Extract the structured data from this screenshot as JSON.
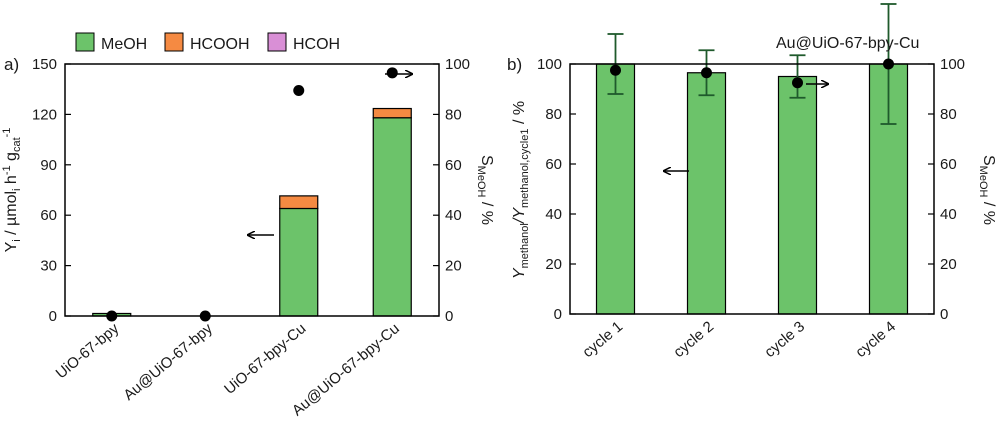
{
  "legend": [
    {
      "name": "MeOH",
      "color": "#6cc36a"
    },
    {
      "name": "HCOOH",
      "color": "#f58a42"
    },
    {
      "name": "HCOH",
      "color": "#d98fd6"
    }
  ],
  "chart_data": [
    {
      "type": "bar",
      "panel_label": "a)",
      "stacked": true,
      "categories": [
        "UiO-67-bpy",
        "Au@UiO-67-bpy",
        "UiO-67-bpy-Cu",
        "Au@UiO-67-bpy-Cu"
      ],
      "series": [
        {
          "name": "MeOH",
          "values": [
            1.5,
            0,
            64,
            118
          ]
        },
        {
          "name": "HCOOH",
          "values": [
            0,
            0,
            7.5,
            5.5
          ]
        },
        {
          "name": "HCOH",
          "values": [
            0,
            0,
            0,
            0
          ]
        }
      ],
      "selectivity": {
        "name": "S_MeOH",
        "values": [
          0,
          0,
          89.5,
          96.5
        ]
      },
      "ylabel_parts": [
        "Y",
        "i",
        " / µmol",
        "i",
        " h",
        "-1",
        " g",
        "cat",
        "-1"
      ],
      "y2label_parts": [
        "S",
        "MeOH",
        " / %"
      ],
      "ylim": [
        0,
        150
      ],
      "yticks": [
        0,
        30,
        60,
        90,
        120,
        150
      ],
      "y2lim": [
        0,
        100
      ],
      "y2ticks": [
        0,
        20,
        40,
        60,
        80,
        100
      ]
    },
    {
      "type": "bar",
      "panel_label": "b)",
      "title": "Au@UiO-67-bpy-Cu",
      "categories": [
        "cycle 1",
        "cycle 2",
        "cycle 3",
        "cycle 4"
      ],
      "series": [
        {
          "name": "Y_methanol/Y_methanol,cycle1",
          "values": [
            100,
            96.5,
            95,
            100
          ],
          "errors": [
            12,
            9,
            8.5,
            24
          ]
        }
      ],
      "selectivity": {
        "name": "S_MeOH",
        "values": [
          97.5,
          96.5,
          92.5,
          100
        ]
      },
      "ylabel_parts": [
        "Y",
        "methanol",
        "/Y",
        "methanol,cycle1",
        " / %"
      ],
      "y2label_parts": [
        "S",
        "MeOH",
        " / %"
      ],
      "ylim": [
        0,
        100
      ],
      "yticks": [
        0,
        20,
        40,
        60,
        80,
        100
      ],
      "y2lim": [
        0,
        100
      ],
      "y2ticks": [
        0,
        20,
        40,
        60,
        80,
        100
      ]
    }
  ]
}
